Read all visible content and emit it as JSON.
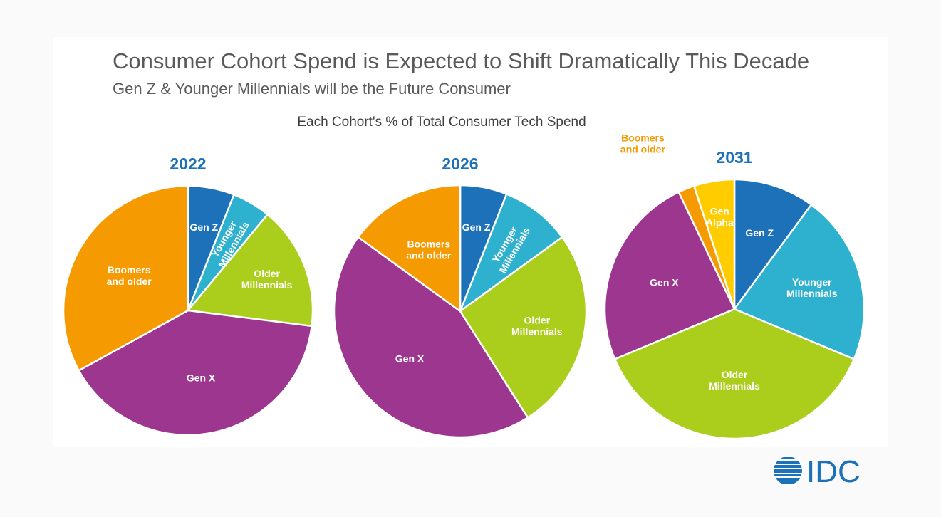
{
  "header": {
    "title": "Consumer Cohort Spend is Expected to Shift Dramatically This Decade",
    "subtitle": "Gen Z & Younger Millennials will be the Future Consumer"
  },
  "chart_heading": "Each Cohort's % of Total Consumer Tech Spend",
  "colors": {
    "Gen Alpha": "#ffcc00",
    "Gen Z": "#1d71b8",
    "Younger Millennials": "#2eb0cf",
    "Older Millennials": "#abcd1b",
    "Gen X": "#9c368f",
    "Boomers and older": "#f59a00",
    "year_label": "#1d71b8",
    "logo": "#1d71b8"
  },
  "logo": {
    "text": "IDC"
  },
  "chart_data": [
    {
      "type": "pie",
      "title": "2022",
      "slices": [
        {
          "label": "Gen Z",
          "display": [
            "Gen Z"
          ],
          "value": 6
        },
        {
          "label": "Younger Millennials",
          "display": [
            "Younger",
            "Millennials"
          ],
          "value": 5
        },
        {
          "label": "Older Millennials",
          "display": [
            "Older",
            "Millennials"
          ],
          "value": 16
        },
        {
          "label": "Gen X",
          "display": [
            "Gen X"
          ],
          "value": 40
        },
        {
          "label": "Boomers and older",
          "display": [
            "Boomers",
            "and older"
          ],
          "value": 33
        }
      ]
    },
    {
      "type": "pie",
      "title": "2026",
      "slices": [
        {
          "label": "Gen Z",
          "display": [
            "Gen Z"
          ],
          "value": 6
        },
        {
          "label": "Younger Millennials",
          "display": [
            "Younger",
            "Millennials"
          ],
          "value": 9
        },
        {
          "label": "Older Millennials",
          "display": [
            "Older",
            "Millennials"
          ],
          "value": 26
        },
        {
          "label": "Gen X",
          "display": [
            "Gen X"
          ],
          "value": 44
        },
        {
          "label": "Boomers and older",
          "display": [
            "Boomers",
            "and older"
          ],
          "value": 15
        }
      ]
    },
    {
      "type": "pie",
      "title": "2031",
      "slices": [
        {
          "label": "Gen Z",
          "display": [
            "Gen Z"
          ],
          "value": 10
        },
        {
          "label": "Younger Millennials",
          "display": [
            "Younger",
            "Millennials"
          ],
          "value": 21
        },
        {
          "label": "Older Millennials",
          "display": [
            "Older",
            "Millennials"
          ],
          "value": 37
        },
        {
          "label": "Gen X",
          "display": [
            "Gen X"
          ],
          "value": 24
        },
        {
          "label": "Boomers and older",
          "display": [
            "Boomers",
            "and older"
          ],
          "value": 2
        },
        {
          "label": "Gen Alpha",
          "display": [
            "Gen",
            "Alpha"
          ],
          "value": 5
        }
      ]
    }
  ]
}
